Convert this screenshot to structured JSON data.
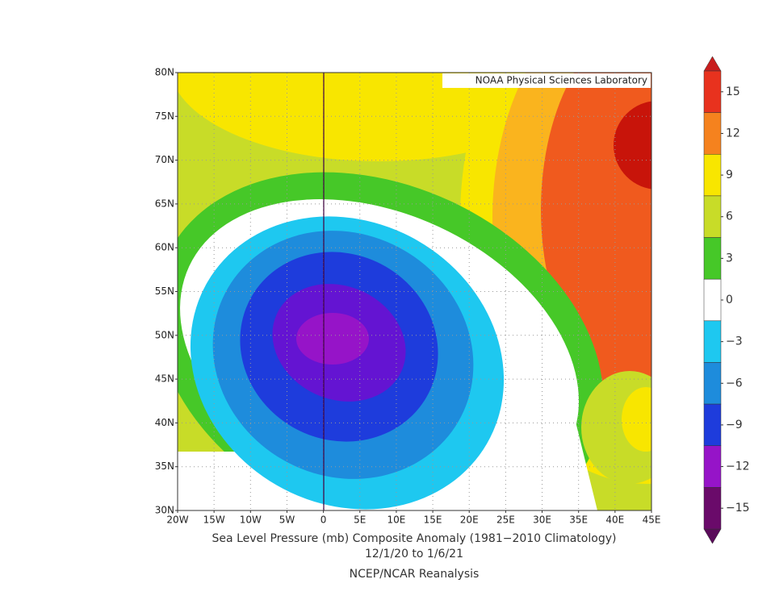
{
  "map": {
    "credit": "NOAA Physical Sciences Laboratory",
    "lat_labels": [
      "80N",
      "75N",
      "70N",
      "65N",
      "60N",
      "55N",
      "50N",
      "45N",
      "40N",
      "35N",
      "30N"
    ],
    "lon_labels": [
      "20W",
      "15W",
      "10W",
      "5W",
      "0",
      "5E",
      "10E",
      "15E",
      "20E",
      "25E",
      "30E",
      "35E",
      "40E",
      "45E"
    ],
    "title": "Sea Level Pressure (mb) Composite Anomaly (1981−2010 Climatology)",
    "dates": "12/1/20  to 1/6/21",
    "source": "NCEP/NCAR Reanalysis"
  },
  "colorbar": {
    "ticks": [
      15,
      12,
      9,
      6,
      3,
      0,
      {
        "value": -3,
        "label": "−3"
      },
      {
        "value": -6,
        "label": "−6"
      },
      {
        "value": -9,
        "label": "−9"
      },
      {
        "value": -12,
        "label": "−12"
      },
      {
        "value": -15,
        "label": "−15"
      }
    ],
    "colors": [
      "#e8321e",
      "#f5821e",
      "#f8e600",
      "#c8dc28",
      "#46c828",
      "#ffffff",
      "#1ec8f0",
      "#1e8cdc",
      "#1e3cdc",
      "#9614c8",
      "#6a0a6a"
    ],
    "over_color": "#c81e1e",
    "under_color": "#5a0a5a"
  }
}
